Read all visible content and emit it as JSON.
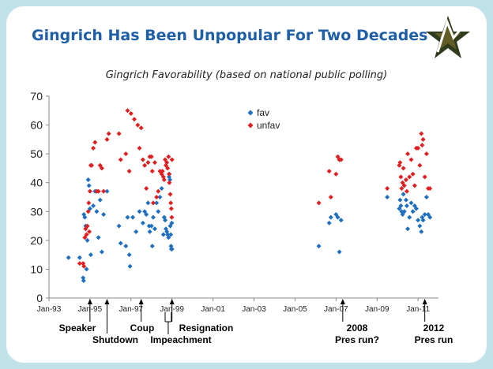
{
  "slide": {
    "title": "Gingrich Has Been Unpopular For Two Decades",
    "logo_icon": "star-logo-icon"
  },
  "chart_data": {
    "type": "scatter",
    "title": "Gingrich Favorability (based on national public polling)",
    "xlabel": "",
    "ylabel": "",
    "ylim": [
      0,
      70
    ],
    "yticks": [
      0,
      10,
      20,
      30,
      40,
      50,
      60,
      70
    ],
    "xlim": [
      "1993-01-01",
      "2011-12-31"
    ],
    "xticks": [
      "Jan-93",
      "Jan-95",
      "Jan-97",
      "Jan-99",
      "Jan-01",
      "Jan-03",
      "Jan-05",
      "Jan-07",
      "Jan-09",
      "Jan-11"
    ],
    "xtick_dates": [
      "1993-01-01",
      "1995-01-01",
      "1997-01-01",
      "1999-01-01",
      "2001-01-01",
      "2003-01-01",
      "2005-01-01",
      "2007-01-01",
      "2009-01-01",
      "2011-01-01"
    ],
    "grid": false,
    "legend": "top-center",
    "series": [
      {
        "name": "fav",
        "color": "#1f6fc0",
        "marker": "diamond",
        "points": [
          [
            "1993-12-15",
            14
          ],
          [
            "1994-07-01",
            14
          ],
          [
            "1994-09-01",
            7
          ],
          [
            "1994-09-10",
            6
          ],
          [
            "1994-09-15",
            29
          ],
          [
            "1994-10-01",
            28
          ],
          [
            "1994-10-15",
            25
          ],
          [
            "1994-11-01",
            10
          ],
          [
            "1994-11-15",
            20
          ],
          [
            "1994-12-01",
            41
          ],
          [
            "1994-12-15",
            39
          ],
          [
            "1995-01-01",
            31
          ],
          [
            "1995-01-15",
            15
          ],
          [
            "1995-03-01",
            32
          ],
          [
            "1995-04-01",
            37
          ],
          [
            "1995-05-01",
            30
          ],
          [
            "1995-06-01",
            21
          ],
          [
            "1995-07-01",
            34
          ],
          [
            "1995-08-01",
            16
          ],
          [
            "1995-09-01",
            29
          ],
          [
            "1995-11-01",
            37
          ],
          [
            "1996-06-01",
            25
          ],
          [
            "1996-07-01",
            19
          ],
          [
            "1996-10-01",
            18
          ],
          [
            "1996-11-01",
            28
          ],
          [
            "1996-12-01",
            15
          ],
          [
            "1996-12-15",
            11
          ],
          [
            "1997-02-01",
            28
          ],
          [
            "1997-04-01",
            23
          ],
          [
            "1997-06-01",
            30
          ],
          [
            "1997-08-01",
            26
          ],
          [
            "1997-09-01",
            30
          ],
          [
            "1997-10-01",
            29
          ],
          [
            "1997-11-01",
            33
          ],
          [
            "1997-11-20",
            25
          ],
          [
            "1997-12-01",
            23
          ],
          [
            "1998-01-01",
            25
          ],
          [
            "1998-01-15",
            18
          ],
          [
            "1998-02-01",
            28
          ],
          [
            "1998-03-01",
            24
          ],
          [
            "1998-04-01",
            33
          ],
          [
            "1998-05-01",
            30
          ],
          [
            "1998-06-01",
            35
          ],
          [
            "1998-07-01",
            38
          ],
          [
            "1998-08-01",
            22
          ],
          [
            "1998-08-15",
            28
          ],
          [
            "1998-09-01",
            27
          ],
          [
            "1998-09-15",
            24
          ],
          [
            "1998-10-01",
            23
          ],
          [
            "1998-10-15",
            22
          ],
          [
            "1998-11-01",
            21
          ],
          [
            "1998-11-10",
            42
          ],
          [
            "1998-11-15",
            43
          ],
          [
            "1998-11-25",
            41
          ],
          [
            "1998-12-01",
            25
          ],
          [
            "1998-12-10",
            22
          ],
          [
            "1998-12-15",
            18
          ],
          [
            "1998-12-20",
            17
          ],
          [
            "1998-12-28",
            26
          ],
          [
            "1999-01-01",
            17
          ],
          [
            "2006-03-01",
            18
          ],
          [
            "2006-09-01",
            26
          ],
          [
            "2006-10-01",
            28
          ],
          [
            "2007-01-01",
            29
          ],
          [
            "2007-02-01",
            28
          ],
          [
            "2007-03-01",
            16
          ],
          [
            "2007-04-01",
            27
          ],
          [
            "2009-07-01",
            35
          ],
          [
            "2010-02-01",
            31
          ],
          [
            "2010-02-15",
            34
          ],
          [
            "2010-03-01",
            32
          ],
          [
            "2010-03-15",
            30
          ],
          [
            "2010-04-01",
            29
          ],
          [
            "2010-04-15",
            36
          ],
          [
            "2010-05-01",
            30
          ],
          [
            "2010-06-01",
            34
          ],
          [
            "2010-06-15",
            32
          ],
          [
            "2010-07-01",
            24
          ],
          [
            "2010-08-01",
            28
          ],
          [
            "2010-09-01",
            33
          ],
          [
            "2010-10-01",
            30
          ],
          [
            "2010-11-01",
            32
          ],
          [
            "2010-12-01",
            31
          ],
          [
            "2011-01-01",
            27
          ],
          [
            "2011-02-01",
            25
          ],
          [
            "2011-03-01",
            23
          ],
          [
            "2011-03-15",
            28
          ],
          [
            "2011-04-01",
            27
          ],
          [
            "2011-05-01",
            29
          ],
          [
            "2011-06-01",
            35
          ],
          [
            "2011-07-01",
            29
          ],
          [
            "2011-08-01",
            28
          ]
        ]
      },
      {
        "name": "unfav",
        "color": "#e02020",
        "marker": "diamond",
        "points": [
          [
            "1994-07-01",
            12
          ],
          [
            "1994-09-01",
            12
          ],
          [
            "1994-09-15",
            11
          ],
          [
            "1994-10-01",
            21
          ],
          [
            "1994-10-15",
            24
          ],
          [
            "1994-11-01",
            22
          ],
          [
            "1994-11-15",
            25
          ],
          [
            "1994-12-01",
            30
          ],
          [
            "1994-12-10",
            33
          ],
          [
            "1994-12-20",
            23
          ],
          [
            "1995-01-01",
            37
          ],
          [
            "1995-01-15",
            46
          ],
          [
            "1995-02-01",
            46
          ],
          [
            "1995-03-01",
            52
          ],
          [
            "1995-04-01",
            54
          ],
          [
            "1995-05-01",
            37
          ],
          [
            "1995-06-01",
            37
          ],
          [
            "1995-07-01",
            46
          ],
          [
            "1995-08-01",
            45
          ],
          [
            "1995-09-01",
            37
          ],
          [
            "1995-11-01",
            55
          ],
          [
            "1995-12-01",
            57
          ],
          [
            "1996-06-01",
            57
          ],
          [
            "1996-07-01",
            48
          ],
          [
            "1996-10-01",
            50
          ],
          [
            "1996-11-01",
            65
          ],
          [
            "1996-12-01",
            44
          ],
          [
            "1997-01-01",
            64
          ],
          [
            "1997-03-01",
            62
          ],
          [
            "1997-05-01",
            60
          ],
          [
            "1997-06-01",
            52
          ],
          [
            "1997-07-01",
            59
          ],
          [
            "1997-08-01",
            48
          ],
          [
            "1997-09-01",
            46
          ],
          [
            "1997-10-01",
            38
          ],
          [
            "1997-11-01",
            47
          ],
          [
            "1997-12-01",
            49
          ],
          [
            "1998-01-01",
            49
          ],
          [
            "1998-01-15",
            44
          ],
          [
            "1998-02-01",
            33
          ],
          [
            "1998-03-01",
            47
          ],
          [
            "1998-04-01",
            35
          ],
          [
            "1998-05-01",
            37
          ],
          [
            "1998-06-01",
            44
          ],
          [
            "1998-07-01",
            43
          ],
          [
            "1998-07-15",
            44
          ],
          [
            "1998-08-01",
            42
          ],
          [
            "1998-08-15",
            41
          ],
          [
            "1998-09-01",
            48
          ],
          [
            "1998-09-15",
            46
          ],
          [
            "1998-10-01",
            47
          ],
          [
            "1998-10-15",
            45
          ],
          [
            "1998-11-01",
            49
          ],
          [
            "1998-11-10",
            43
          ],
          [
            "1998-11-15",
            40
          ],
          [
            "1998-12-01",
            36
          ],
          [
            "1998-12-10",
            33
          ],
          [
            "1998-12-20",
            31
          ],
          [
            "1998-12-28",
            28
          ],
          [
            "1999-01-01",
            48
          ],
          [
            "2006-03-01",
            33
          ],
          [
            "2006-09-01",
            44
          ],
          [
            "2006-10-01",
            35
          ],
          [
            "2007-01-01",
            43
          ],
          [
            "2007-02-01",
            49
          ],
          [
            "2007-03-01",
            48
          ],
          [
            "2007-04-01",
            48
          ],
          [
            "2009-07-01",
            38
          ],
          [
            "2010-02-01",
            46
          ],
          [
            "2010-02-15",
            47
          ],
          [
            "2010-03-01",
            42
          ],
          [
            "2010-03-15",
            38
          ],
          [
            "2010-04-01",
            40
          ],
          [
            "2010-04-15",
            45
          ],
          [
            "2010-05-01",
            39
          ],
          [
            "2010-06-01",
            41
          ],
          [
            "2010-06-15",
            37
          ],
          [
            "2010-07-01",
            50
          ],
          [
            "2010-08-01",
            42
          ],
          [
            "2010-09-01",
            48
          ],
          [
            "2010-10-01",
            43
          ],
          [
            "2010-11-01",
            39
          ],
          [
            "2010-12-01",
            52
          ],
          [
            "2011-01-01",
            52
          ],
          [
            "2011-02-01",
            46
          ],
          [
            "2011-03-01",
            57
          ],
          [
            "2011-03-15",
            53
          ],
          [
            "2011-04-01",
            55
          ],
          [
            "2011-05-01",
            42
          ],
          [
            "2011-06-01",
            50
          ],
          [
            "2011-07-01",
            38
          ],
          [
            "2011-08-01",
            38
          ]
        ]
      }
    ],
    "annotations": [
      {
        "label": "Speaker",
        "date": "1995-01-01",
        "row": 1
      },
      {
        "label": "Shutdown",
        "date": "1995-11-01",
        "row": 2
      },
      {
        "label": "Coup",
        "date": "1997-07-01",
        "row": 1
      },
      {
        "label": "Impeachment",
        "date": "1998-10-01",
        "row": 2
      },
      {
        "label": "Resignation",
        "date": "1999-01-01",
        "row": 1
      },
      {
        "label": "2008",
        "label2": "Pres run?",
        "date": "2007-05-01",
        "row": 1
      },
      {
        "label": "2012",
        "label2": "Pres run",
        "date": "2011-05-01",
        "row": 1
      }
    ]
  }
}
